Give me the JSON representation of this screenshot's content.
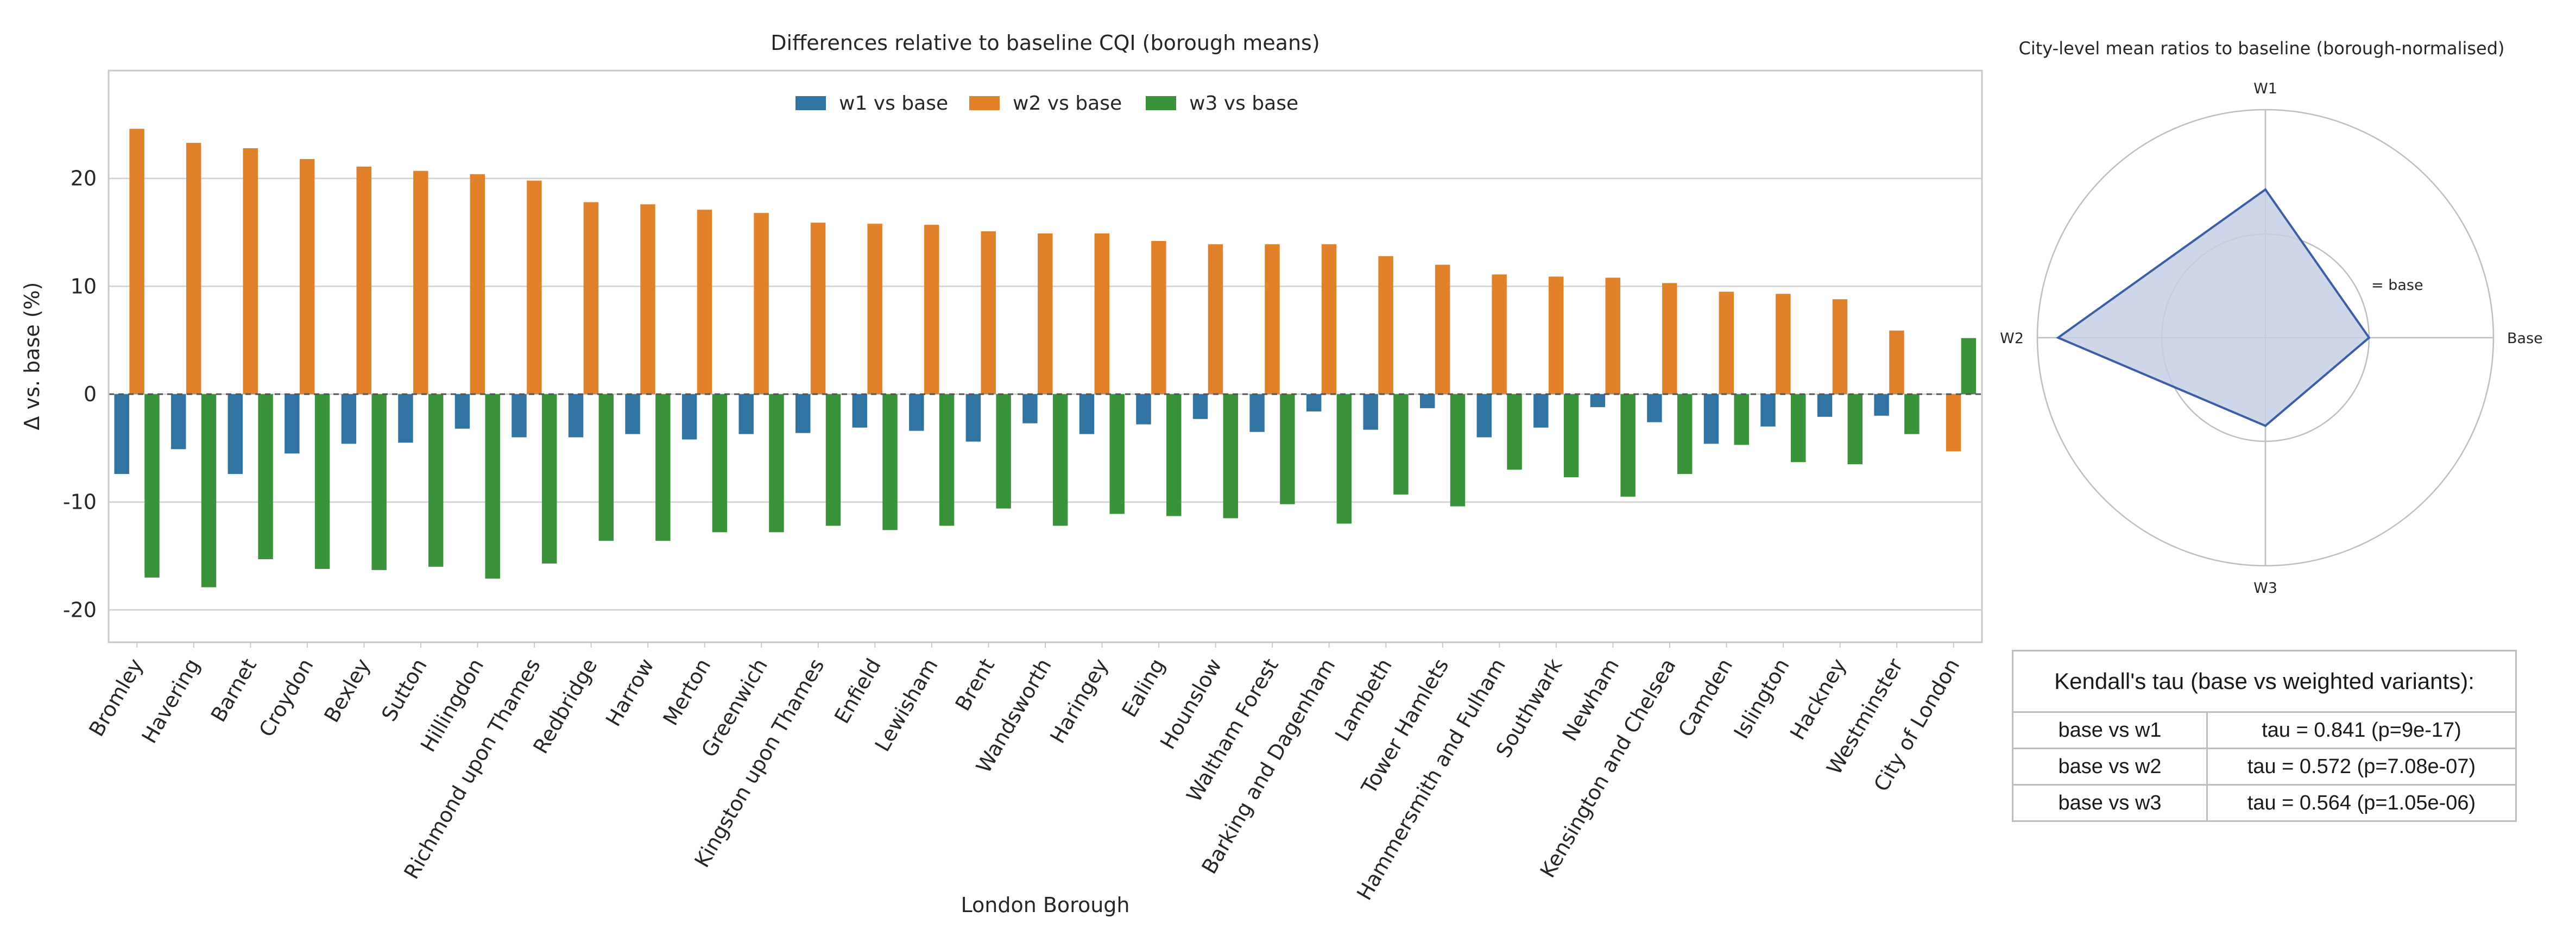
{
  "chart_data": [
    {
      "type": "bar",
      "title": "Differences relative to baseline CQI (borough means)",
      "xlabel": "London Borough",
      "ylabel": "Δ vs. base (%)",
      "ylim": [
        -23,
        30
      ],
      "yticks": [
        -20,
        -10,
        0,
        10,
        20
      ],
      "grid": true,
      "legend_position": "top-center",
      "categories": [
        "Bromley",
        "Havering",
        "Barnet",
        "Croydon",
        "Bexley",
        "Sutton",
        "Hillingdon",
        "Richmond upon Thames",
        "Redbridge",
        "Harrow",
        "Merton",
        "Greenwich",
        "Kingston upon Thames",
        "Enfield",
        "Lewisham",
        "Brent",
        "Wandsworth",
        "Haringey",
        "Ealing",
        "Hounslow",
        "Waltham Forest",
        "Barking and Dagenham",
        "Lambeth",
        "Tower Hamlets",
        "Hammersmith and Fulham",
        "Southwark",
        "Newham",
        "Kensington and Chelsea",
        "Camden",
        "Islington",
        "Hackney",
        "Westminster",
        "City of London"
      ],
      "series": [
        {
          "name": "w1 vs base",
          "color": "#3274a1",
          "values": [
            -7.4,
            -5.1,
            -7.4,
            -5.5,
            -4.6,
            -4.5,
            -3.2,
            -4.0,
            -4.0,
            -3.7,
            -4.2,
            -3.7,
            -3.6,
            -3.1,
            -3.4,
            -4.4,
            -2.7,
            -3.7,
            -2.8,
            -2.3,
            -3.5,
            -1.6,
            -3.3,
            -1.3,
            -4.0,
            -3.1,
            -1.2,
            -2.6,
            -4.6,
            -3.0,
            -2.1,
            -2.0,
            0.0
          ]
        },
        {
          "name": "w2 vs base",
          "color": "#e1812c",
          "values": [
            24.6,
            23.3,
            22.8,
            21.8,
            21.1,
            20.7,
            20.4,
            19.8,
            17.8,
            17.6,
            17.1,
            16.8,
            15.9,
            15.8,
            15.7,
            15.1,
            14.9,
            14.9,
            14.2,
            13.9,
            13.9,
            13.9,
            12.8,
            12.0,
            11.1,
            10.9,
            10.8,
            10.3,
            9.5,
            9.3,
            8.8,
            5.9,
            -5.3
          ]
        },
        {
          "name": "w3 vs base",
          "color": "#3a923a",
          "values": [
            -17.0,
            -17.9,
            -15.3,
            -16.2,
            -16.3,
            -16.0,
            -17.1,
            -15.7,
            -13.6,
            -13.6,
            -12.8,
            -12.8,
            -12.2,
            -12.6,
            -12.2,
            -10.6,
            -12.2,
            -11.1,
            -11.3,
            -11.5,
            -10.2,
            -12.0,
            -9.3,
            -10.4,
            -7.0,
            -7.7,
            -9.5,
            -7.4,
            -4.7,
            -6.3,
            -6.5,
            -3.7,
            5.2
          ]
        }
      ]
    },
    {
      "type": "radar",
      "title": "City-level mean ratios to baseline (borough-normalised)",
      "axes": [
        "W1",
        "Base",
        "W3",
        "W2"
      ],
      "values": [
        1.43,
        1.0,
        0.85,
        2.0
      ],
      "rlim": [
        0,
        2.2
      ],
      "reference_ring": 1.0,
      "reference_label": "= base",
      "line_color": "#3a5ea8",
      "fill_color": "#c5d0e6"
    }
  ],
  "table": {
    "title": "Kendall's tau (base vs weighted variants):",
    "rows": [
      {
        "pair": "base vs w1",
        "stat": "tau = 0.841   (p=9e-17)"
      },
      {
        "pair": "base vs w2",
        "stat": "tau = 0.572   (p=7.08e-07)"
      },
      {
        "pair": "base vs w3",
        "stat": "tau = 0.564   (p=1.05e-06)"
      }
    ]
  }
}
